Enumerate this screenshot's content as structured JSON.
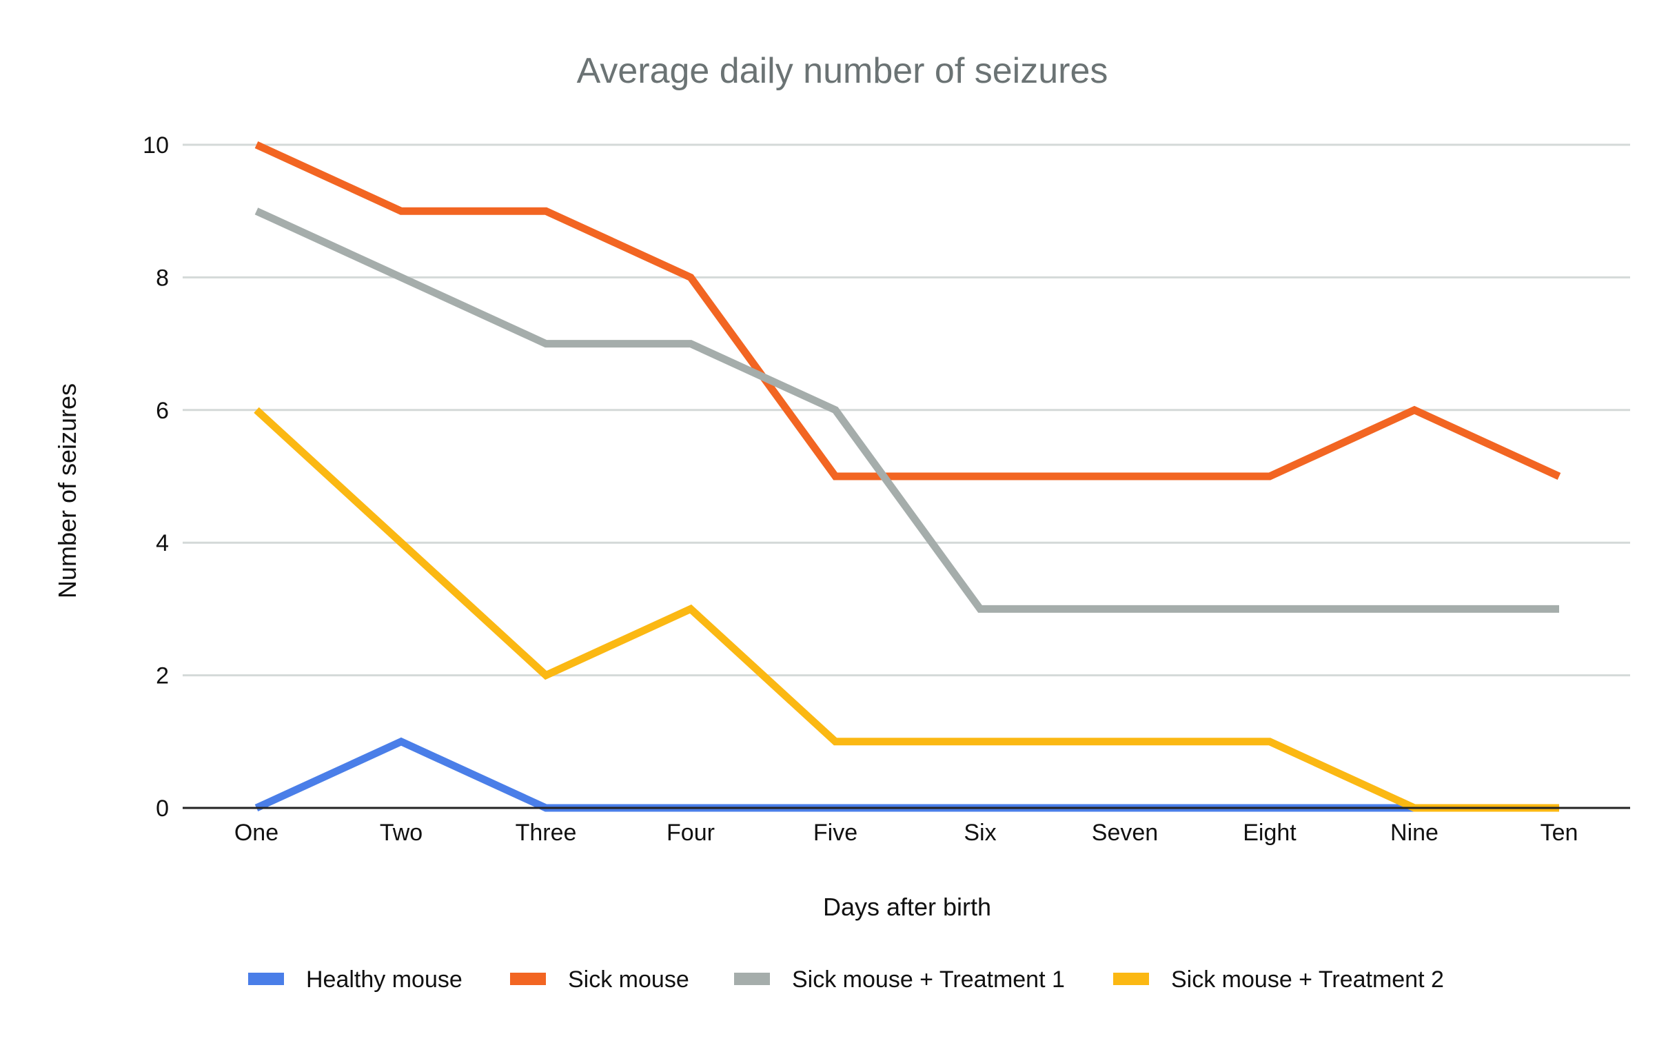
{
  "chart_data": {
    "type": "line",
    "title": "Average daily number of seizures",
    "xlabel": "Days after birth",
    "ylabel": "Number of seizures",
    "categories": [
      "One",
      "Two",
      "Three",
      "Four",
      "Five",
      "Six",
      "Seven",
      "Eight",
      "Nine",
      "Ten"
    ],
    "ylim": [
      0,
      10
    ],
    "yticks": [
      "0",
      "2",
      "4",
      "6",
      "8",
      "10"
    ],
    "grid": true,
    "legend_position": "bottom",
    "series": [
      {
        "name": "Healthy mouse",
        "color": "#4a7ee8",
        "values": [
          0,
          1,
          0,
          0,
          0,
          0,
          0,
          0,
          0,
          0
        ]
      },
      {
        "name": "Sick mouse",
        "color": "#f26522",
        "values": [
          10,
          9,
          9,
          8,
          5,
          5,
          5,
          5,
          6,
          5
        ]
      },
      {
        "name": "Sick mouse + Treatment 1",
        "color": "#a5adab",
        "values": [
          9,
          8,
          7,
          7,
          6,
          3,
          3,
          3,
          3,
          3
        ]
      },
      {
        "name": "Sick mouse + Treatment 2",
        "color": "#fbb813",
        "values": [
          6,
          4,
          2,
          3,
          1,
          1,
          1,
          1,
          0,
          0
        ]
      }
    ]
  }
}
